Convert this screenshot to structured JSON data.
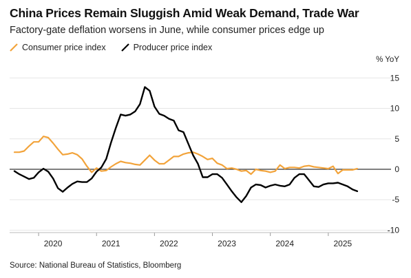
{
  "header": {
    "title": "China Prices Remain Sluggish Amid Weak Demand, Trade War",
    "subtitle": "Factory-gate deflation worsens in June, while consumer prices edge up"
  },
  "footer": {
    "source": "Source: National Bureau of Statistics, Bloomberg"
  },
  "colors": {
    "cpi": "#f2a33a",
    "ppi": "#000000",
    "zero_line": "#333333",
    "grid": "#e6e6e6"
  },
  "chart_data": {
    "type": "line",
    "title": "China Prices Remain Sluggish Amid Weak Demand, Trade War",
    "subtitle": "Factory-gate deflation worsens in June, while consumer prices edge up",
    "ylabel": "% YoY",
    "ylim": [
      -11,
      16
    ],
    "yticks": [
      "15",
      "10",
      "5",
      "0",
      "-5",
      "-10"
    ],
    "ytick_values": [
      15,
      10,
      5,
      0,
      -5,
      -10
    ],
    "xticks": [
      "2020",
      "2021",
      "2022",
      "2023",
      "2024",
      "2025"
    ],
    "xlim_months": [
      0,
      79
    ],
    "grid": true,
    "legend_position": "top-left",
    "series": [
      {
        "name": "Consumer price index",
        "color": "#f2a33a",
        "start": "2019-07",
        "values": [
          2.8,
          2.8,
          3.0,
          3.8,
          4.5,
          4.5,
          5.4,
          5.2,
          4.3,
          3.3,
          2.4,
          2.5,
          2.7,
          2.4,
          1.7,
          0.5,
          -0.5,
          0.2,
          -0.3,
          -0.2,
          0.4,
          0.9,
          1.3,
          1.1,
          1.0,
          0.8,
          0.7,
          1.5,
          2.3,
          1.5,
          0.9,
          0.9,
          1.5,
          2.1,
          2.1,
          2.5,
          2.7,
          2.8,
          2.5,
          2.1,
          1.6,
          1.8,
          1.0,
          0.7,
          0.1,
          0.2,
          0.0,
          -0.3,
          -0.2,
          -0.8,
          0.0,
          -0.2,
          -0.3,
          -0.5,
          -0.3,
          0.7,
          0.1,
          0.3,
          0.3,
          0.2,
          0.5,
          0.6,
          0.4,
          0.3,
          0.2,
          0.1,
          0.5,
          -0.7,
          -0.1,
          -0.1,
          -0.1,
          0.1
        ],
        "note": "monthly values from Jul 2019 onward"
      },
      {
        "name": "Producer price index",
        "color": "#000000",
        "start": "2019-07",
        "values": [
          -0.3,
          -0.8,
          -1.2,
          -1.6,
          -1.4,
          -0.5,
          0.1,
          -0.4,
          -1.5,
          -3.1,
          -3.7,
          -3.0,
          -2.4,
          -2.0,
          -2.1,
          -2.1,
          -1.5,
          -0.4,
          0.3,
          1.7,
          4.4,
          6.8,
          9.0,
          8.8,
          9.0,
          9.5,
          10.7,
          13.5,
          12.9,
          10.3,
          9.1,
          8.8,
          8.3,
          8.0,
          6.4,
          6.1,
          4.2,
          2.3,
          0.9,
          -1.3,
          -1.3,
          -0.8,
          -0.8,
          -1.4,
          -2.5,
          -3.6,
          -4.6,
          -5.4,
          -4.4,
          -3.0,
          -2.5,
          -2.6,
          -3.0,
          -2.7,
          -2.5,
          -2.7,
          -2.8,
          -2.5,
          -1.4,
          -0.8,
          -0.8,
          -1.8,
          -2.8,
          -2.9,
          -2.5,
          -2.3,
          -2.3,
          -2.2,
          -2.5,
          -2.8,
          -3.3,
          -3.6
        ],
        "note": "monthly values from Jul 2019 onward"
      }
    ]
  }
}
